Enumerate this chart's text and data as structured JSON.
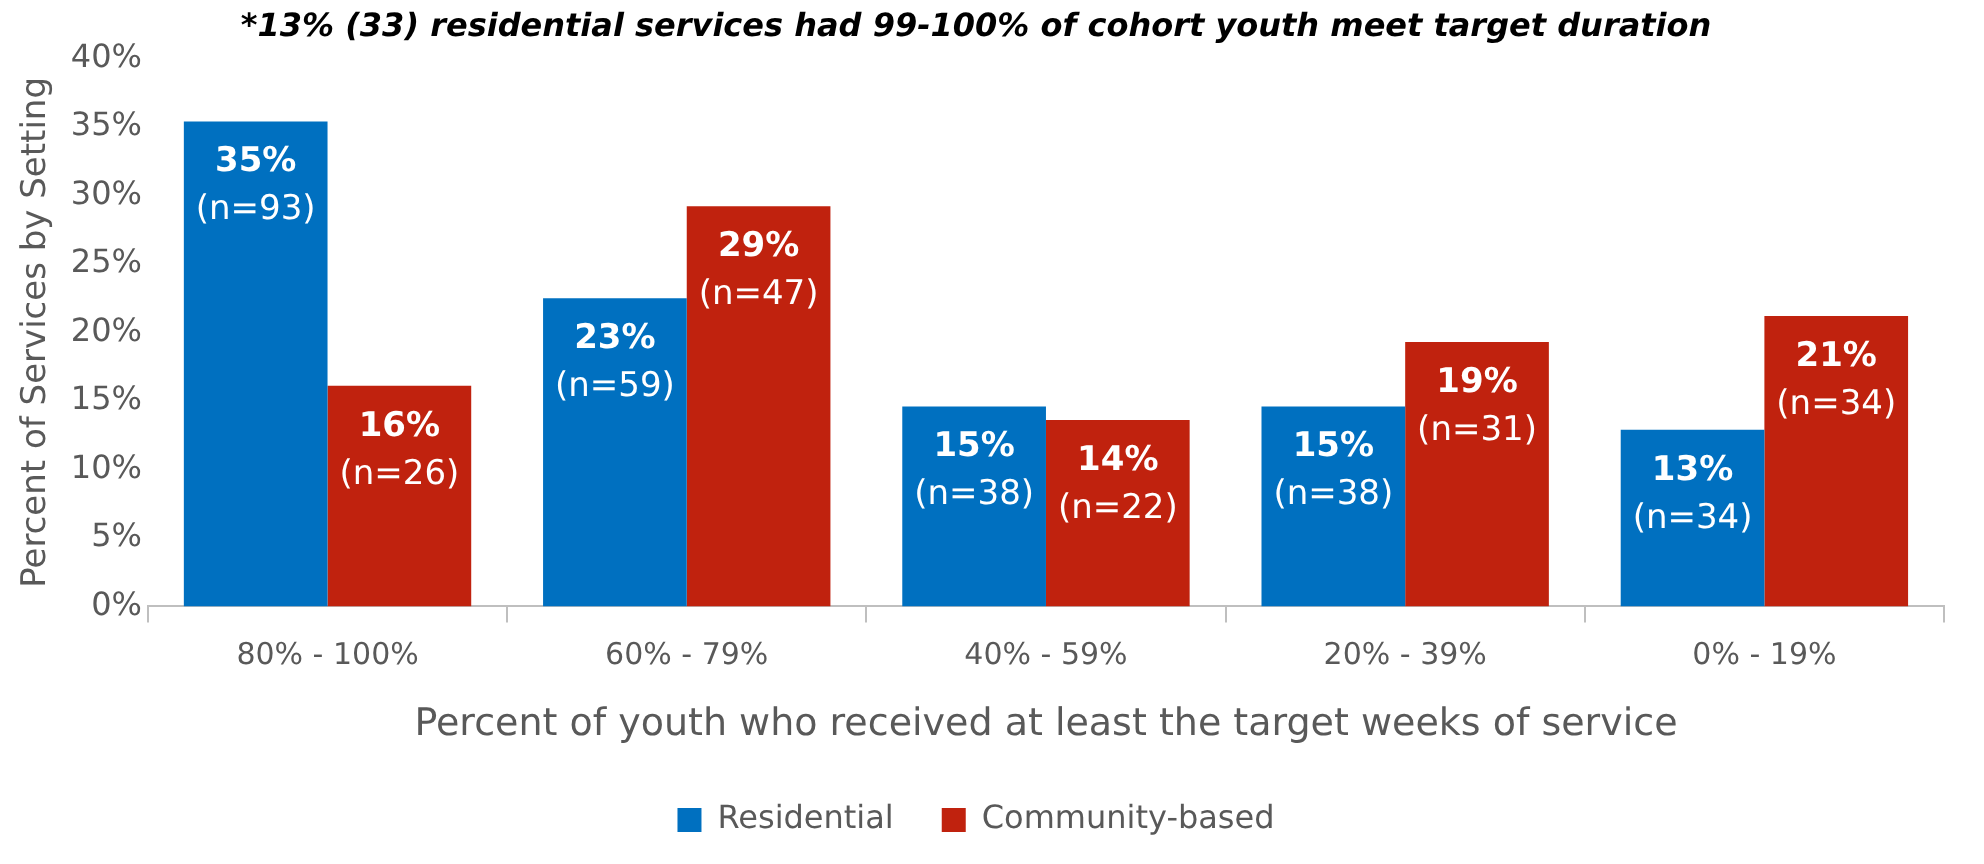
{
  "chart_data": {
    "type": "bar",
    "title": "*13% (33) residential services had 99-100% of cohort youth meet target duration",
    "xlabel": "Percent of youth who received at least the target weeks of service",
    "ylabel": "Percent of Services by Setting",
    "categories": [
      "80% - 100%",
      "60% - 79%",
      "40% - 59%",
      "20% - 39%",
      "0% - 19%"
    ],
    "series": [
      {
        "name": "Residential",
        "color": "#0070c0",
        "values": [
          35.4,
          22.5,
          14.6,
          14.6,
          12.9
        ],
        "value_labels": [
          "35%\n(n=93)",
          "23%\n(n=59)",
          "15%\n(n=38)",
          "15%\n(n=38)",
          "13%\n(n=34)"
        ]
      },
      {
        "name": "Community-based",
        "color": "#c0220e",
        "values": [
          16.1,
          29.2,
          13.6,
          19.3,
          21.2
        ],
        "value_labels": [
          "16%\n(n=26)",
          "29%\n(n=47)",
          "14%\n(n=22)",
          "19%\n(n=31)",
          "21%\n(n=34)"
        ]
      }
    ],
    "ylim": [
      0,
      40
    ],
    "yticks": [
      {
        "value": 0,
        "label": "0%"
      },
      {
        "value": 5,
        "label": "5%"
      },
      {
        "value": 10,
        "label": "10%"
      },
      {
        "value": 15,
        "label": "15%"
      },
      {
        "value": 20,
        "label": "20%"
      },
      {
        "value": 25,
        "label": "25%"
      },
      {
        "value": 30,
        "label": "30%"
      },
      {
        "value": 35,
        "label": "35%"
      },
      {
        "value": 40,
        "label": "40%"
      }
    ],
    "grid": false,
    "legend": "bottom"
  }
}
